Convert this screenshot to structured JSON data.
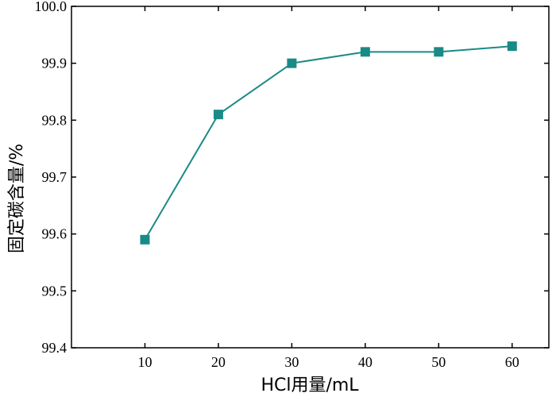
{
  "chart_data": {
    "type": "line",
    "title": "",
    "xlabel": "HCl用量/mL",
    "ylabel": "固定碳含量/%",
    "x": [
      10,
      20,
      30,
      40,
      50,
      60
    ],
    "series": [
      {
        "values": [
          99.59,
          99.81,
          99.9,
          99.92,
          99.92,
          99.93
        ]
      }
    ],
    "xlim": [
      0,
      65
    ],
    "ylim": [
      99.4,
      100.0
    ],
    "xticks": [
      "10",
      "20",
      "30",
      "40",
      "50",
      "60"
    ],
    "yticks": [
      "99.4",
      "99.5",
      "99.6",
      "99.7",
      "99.8",
      "99.9",
      "100.0"
    ],
    "grid": false,
    "legend": "none",
    "colors": {
      "series": "#1a8a86",
      "marker": "#1a8a86",
      "axis": "#000000"
    },
    "marker": "square"
  }
}
